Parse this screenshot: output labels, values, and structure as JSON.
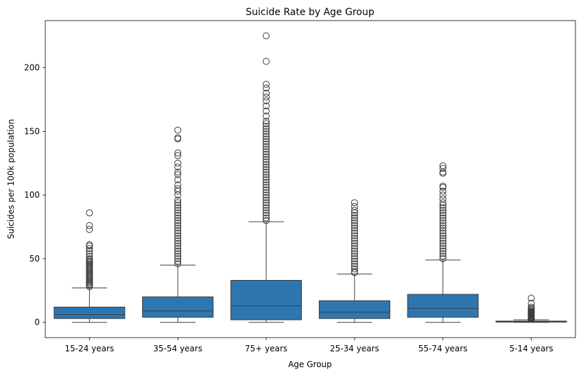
{
  "chart_data": {
    "type": "box",
    "title": "Suicide Rate by Age Group",
    "xlabel": "Age Group",
    "ylabel": "Suicides per 100k population",
    "ylim": [
      -12,
      237
    ],
    "yticks": [
      0,
      50,
      100,
      150,
      200
    ],
    "grid": false,
    "box_color": "#2e76b0",
    "line_color": "#3b3b3b",
    "categories": [
      "15-24 years",
      "35-54 years",
      "75+ years",
      "25-34 years",
      "55-74 years",
      "5-14 years"
    ],
    "boxes": [
      {
        "label": "15-24 years",
        "whisker_low": 0,
        "q1": 3,
        "median": 6,
        "q3": 12,
        "whisker_high": 27,
        "outliers": [
          28,
          29,
          30,
          31,
          32,
          33,
          34,
          35,
          36,
          37,
          38,
          39,
          40,
          41,
          42,
          43,
          44,
          45,
          46,
          47,
          48,
          49,
          50,
          52,
          54,
          56,
          58,
          60,
          61,
          73,
          76,
          86
        ]
      },
      {
        "label": "35-54 years",
        "whisker_low": 0,
        "q1": 4,
        "median": 9,
        "q3": 20,
        "whisker_high": 45,
        "outliers": [
          46,
          48,
          50,
          52,
          54,
          56,
          58,
          60,
          62,
          64,
          66,
          68,
          70,
          72,
          74,
          76,
          78,
          80,
          82,
          84,
          86,
          88,
          90,
          92,
          94,
          96,
          100,
          103,
          105,
          108,
          112,
          116,
          118,
          122,
          125,
          131,
          133,
          144,
          145,
          151
        ]
      },
      {
        "label": "75+ years",
        "whisker_low": 0,
        "q1": 2,
        "median": 13,
        "q3": 33,
        "whisker_high": 79,
        "outliers": [
          80,
          82,
          84,
          86,
          88,
          90,
          92,
          94,
          96,
          98,
          100,
          102,
          104,
          106,
          108,
          110,
          112,
          114,
          116,
          118,
          120,
          122,
          124,
          126,
          128,
          130,
          132,
          134,
          136,
          138,
          140,
          142,
          144,
          146,
          148,
          150,
          152,
          154,
          156,
          158,
          162,
          166,
          170,
          174,
          177,
          180,
          184,
          187,
          205,
          225
        ]
      },
      {
        "label": "25-34 years",
        "whisker_low": 0,
        "q1": 3,
        "median": 8,
        "q3": 17,
        "whisker_high": 38,
        "outliers": [
          39,
          40,
          42,
          44,
          46,
          48,
          50,
          52,
          54,
          56,
          58,
          60,
          62,
          64,
          66,
          68,
          70,
          72,
          74,
          76,
          78,
          80,
          82,
          84,
          86,
          88,
          91,
          94
        ]
      },
      {
        "label": "55-74 years",
        "whisker_low": 0,
        "q1": 4,
        "median": 11,
        "q3": 22,
        "whisker_high": 49,
        "outliers": [
          50,
          52,
          54,
          56,
          58,
          60,
          62,
          64,
          66,
          68,
          70,
          72,
          74,
          76,
          78,
          80,
          82,
          84,
          86,
          88,
          90,
          92,
          94,
          97,
          100,
          103,
          106,
          107,
          117,
          118,
          121,
          123
        ]
      },
      {
        "label": "5-14 years",
        "whisker_low": 0,
        "q1": 0.2,
        "median": 0.5,
        "q3": 1,
        "whisker_high": 2,
        "outliers": [
          2.5,
          3,
          3.5,
          4,
          4.5,
          5,
          5.5,
          6,
          6.5,
          7,
          7.5,
          8,
          8.5,
          9,
          10,
          11,
          12,
          15,
          19
        ]
      }
    ]
  }
}
